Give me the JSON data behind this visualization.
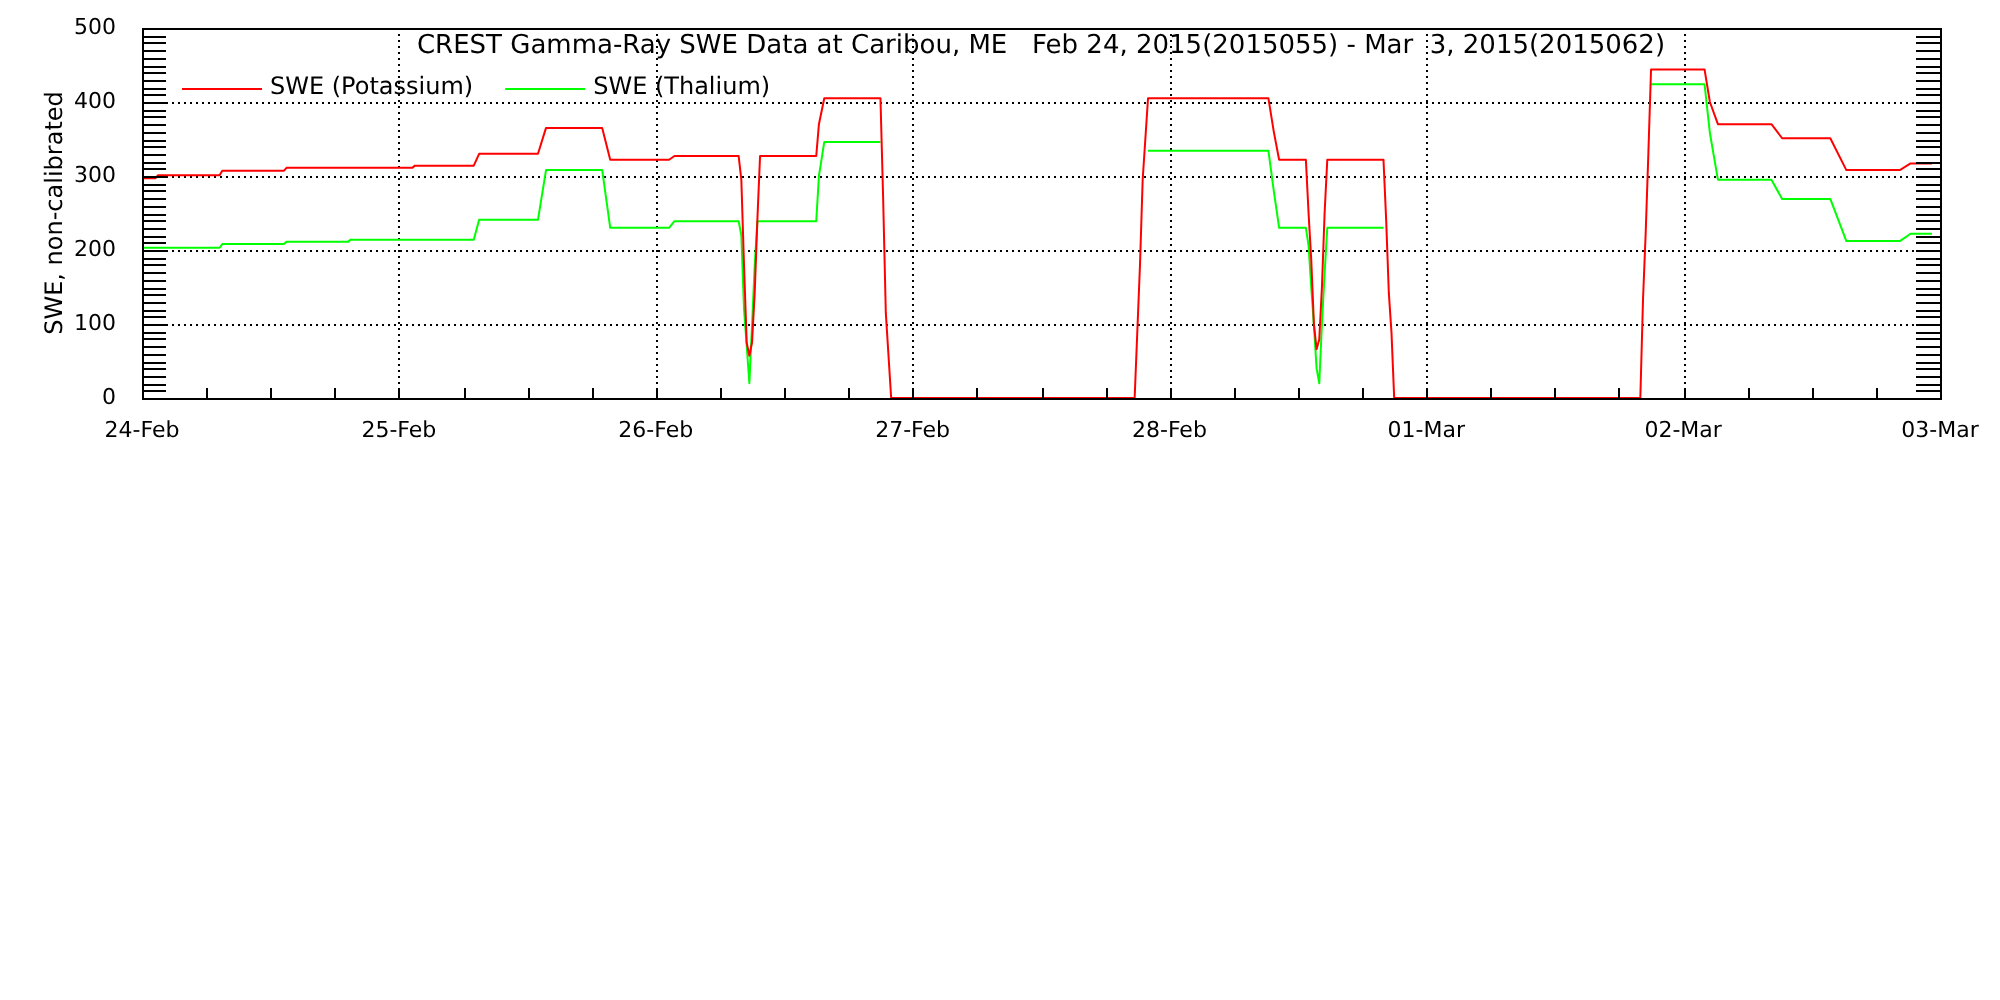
{
  "chart_data": {
    "type": "line",
    "title": "CREST Gamma-Ray SWE Data at Caribou, ME   Feb 24, 2015(2015055) - Mar  3, 2015(2015062)",
    "ylabel": "SWE, non-calibrated",
    "x": [
      "2015-02-24T00:00",
      "2015-02-24T01:15",
      "2015-02-24T01:30",
      "2015-02-24T07:15",
      "2015-02-24T07:30",
      "2015-02-24T13:15",
      "2015-02-24T13:30",
      "2015-02-24T19:15",
      "2015-02-24T19:30",
      "2015-02-25T01:15",
      "2015-02-25T01:30",
      "2015-02-25T07:00",
      "2015-02-25T07:30",
      "2015-02-25T13:00",
      "2015-02-25T13:45",
      "2015-02-25T19:00",
      "2015-02-25T19:45",
      "2015-02-26T01:15",
      "2015-02-26T01:45",
      "2015-02-26T07:45",
      "2015-02-26T08:00",
      "2015-02-26T08:15",
      "2015-02-26T08:30",
      "2015-02-26T08:45",
      "2015-02-26T09:00",
      "2015-02-26T09:15",
      "2015-02-26T09:30",
      "2015-02-26T09:45",
      "2015-02-26T15:00",
      "2015-02-26T15:15",
      "2015-02-26T15:45",
      "2015-02-26T21:00",
      "2015-02-26T21:15",
      "2015-02-26T21:30",
      "2015-02-26T22:00",
      "2015-02-27T20:45",
      "2015-02-27T21:15",
      "2015-02-27T21:30",
      "2015-02-27T22:00",
      "2015-02-28T09:15",
      "2015-02-28T09:45",
      "2015-02-28T10:15",
      "2015-02-28T12:45",
      "2015-02-28T13:00",
      "2015-02-28T13:15",
      "2015-02-28T13:30",
      "2015-02-28T13:45",
      "2015-02-28T14:00",
      "2015-02-28T14:15",
      "2015-02-28T14:30",
      "2015-02-28T14:45",
      "2015-02-28T20:00",
      "2015-02-28T20:15",
      "2015-02-28T20:30",
      "2015-02-28T20:45",
      "2015-02-28T21:00",
      "2015-03-01T20:00",
      "2015-03-01T20:15",
      "2015-03-01T20:30",
      "2015-03-01T20:45",
      "2015-03-01T21:00",
      "2015-03-02T02:00",
      "2015-03-02T02:30",
      "2015-03-02T03:15",
      "2015-03-02T08:15",
      "2015-03-02T09:15",
      "2015-03-02T13:45",
      "2015-03-02T15:15",
      "2015-03-02T20:15",
      "2015-03-02T21:15",
      "2015-03-02T23:15"
    ],
    "series": [
      {
        "name": "SWE (Potassium)",
        "color": "#ff0000",
        "values": [
          297,
          297,
          301,
          301,
          307,
          307,
          311,
          311,
          311,
          311,
          314,
          314,
          330,
          330,
          365,
          365,
          322,
          322,
          327,
          327,
          295,
          180,
          75,
          57,
          75,
          142,
          241,
          327,
          327,
          370,
          405,
          405,
          270,
          115,
          0,
          0,
          180,
          295,
          405,
          405,
          360,
          322,
          322,
          250,
          187,
          100,
          66,
          79,
          150,
          250,
          322,
          322,
          241,
          142,
          88,
          0,
          0,
          133,
          223,
          330,
          444,
          444,
          400,
          370,
          370,
          351,
          351,
          308,
          308,
          317,
          317
        ]
      },
      {
        "name": "SWE (Thalium)",
        "color": "#00ff00",
        "values": [
          203,
          203,
          203,
          203,
          208,
          208,
          211,
          211,
          214,
          214,
          214,
          214,
          241,
          241,
          308,
          308,
          230,
          230,
          239,
          239,
          220,
          120,
          71,
          20,
          98,
          179,
          239,
          239,
          239,
          300,
          346,
          346,
          null,
          null,
          null,
          null,
          null,
          null,
          334,
          334,
          280,
          230,
          230,
          206,
          150,
          98,
          40,
          20,
          100,
          169,
          230,
          230,
          null,
          null,
          null,
          null,
          null,
          null,
          null,
          null,
          424,
          424,
          358,
          295,
          295,
          269,
          269,
          212,
          212,
          222,
          222
        ]
      }
    ],
    "xlim": [
      "2015-02-24",
      "2015-03-03"
    ],
    "xticks": [
      {
        "value": "2015-02-24",
        "label": "24-Feb"
      },
      {
        "value": "2015-02-24T06:00",
        "label": null
      },
      {
        "value": "2015-02-24T12:00",
        "label": null
      },
      {
        "value": "2015-02-24T18:00",
        "label": null
      },
      {
        "value": "2015-02-25",
        "label": "25-Feb"
      },
      {
        "value": "2015-02-25T06:00",
        "label": null
      },
      {
        "value": "2015-02-25T12:00",
        "label": null
      },
      {
        "value": "2015-02-25T18:00",
        "label": null
      },
      {
        "value": "2015-02-26",
        "label": "26-Feb"
      },
      {
        "value": "2015-02-26T06:00",
        "label": null
      },
      {
        "value": "2015-02-26T12:00",
        "label": null
      },
      {
        "value": "2015-02-26T18:00",
        "label": null
      },
      {
        "value": "2015-02-27",
        "label": "27-Feb"
      },
      {
        "value": "2015-02-27T06:00",
        "label": null
      },
      {
        "value": "2015-02-27T12:00",
        "label": null
      },
      {
        "value": "2015-02-27T18:00",
        "label": null
      },
      {
        "value": "2015-02-28",
        "label": "28-Feb"
      },
      {
        "value": "2015-02-28T06:00",
        "label": null
      },
      {
        "value": "2015-02-28T12:00",
        "label": null
      },
      {
        "value": "2015-02-28T18:00",
        "label": null
      },
      {
        "value": "2015-03-01",
        "label": "01-Mar"
      },
      {
        "value": "2015-03-01T06:00",
        "label": null
      },
      {
        "value": "2015-03-01T12:00",
        "label": null
      },
      {
        "value": "2015-03-01T18:00",
        "label": null
      },
      {
        "value": "2015-03-02",
        "label": "02-Mar"
      },
      {
        "value": "2015-03-02T06:00",
        "label": null
      },
      {
        "value": "2015-03-02T12:00",
        "label": null
      },
      {
        "value": "2015-03-02T18:00",
        "label": null
      },
      {
        "value": "2015-03-03",
        "label": "03-Mar"
      }
    ],
    "ylim": [
      0,
      500
    ],
    "yticks": [
      0,
      {
        "value": 10,
        "label": null
      },
      {
        "value": 20,
        "label": null
      },
      {
        "value": 30,
        "label": null
      },
      {
        "value": 40,
        "label": null
      },
      {
        "value": 50,
        "label": null
      },
      {
        "value": 60,
        "label": null
      },
      {
        "value": 70,
        "label": null
      },
      {
        "value": 80,
        "label": null
      },
      {
        "value": 90,
        "label": null
      },
      100,
      {
        "value": 110,
        "label": null
      },
      {
        "value": 120,
        "label": null
      },
      {
        "value": 130,
        "label": null
      },
      {
        "value": 140,
        "label": null
      },
      {
        "value": 150,
        "label": null
      },
      {
        "value": 160,
        "label": null
      },
      {
        "value": 170,
        "label": null
      },
      {
        "value": 180,
        "label": null
      },
      {
        "value": 190,
        "label": null
      },
      200,
      {
        "value": 210,
        "label": null
      },
      {
        "value": 220,
        "label": null
      },
      {
        "value": 230,
        "label": null
      },
      {
        "value": 240,
        "label": null
      },
      {
        "value": 250,
        "label": null
      },
      {
        "value": 260,
        "label": null
      },
      {
        "value": 270,
        "label": null
      },
      {
        "value": 280,
        "label": null
      },
      {
        "value": 290,
        "label": null
      },
      300,
      {
        "value": 310,
        "label": null
      },
      {
        "value": 320,
        "label": null
      },
      {
        "value": 330,
        "label": null
      },
      {
        "value": 340,
        "label": null
      },
      {
        "value": 350,
        "label": null
      },
      {
        "value": 360,
        "label": null
      },
      {
        "value": 370,
        "label": null
      },
      {
        "value": 380,
        "label": null
      },
      {
        "value": 390,
        "label": null
      },
      400,
      {
        "value": 410,
        "label": null
      },
      {
        "value": 420,
        "label": null
      },
      {
        "value": 430,
        "label": null
      },
      {
        "value": 440,
        "label": null
      },
      {
        "value": 450,
        "label": null
      },
      {
        "value": 460,
        "label": null
      },
      {
        "value": 470,
        "label": null
      },
      {
        "value": 480,
        "label": null
      },
      {
        "value": 490,
        "label": null
      },
      500
    ],
    "grid": true,
    "legend": "top left"
  }
}
